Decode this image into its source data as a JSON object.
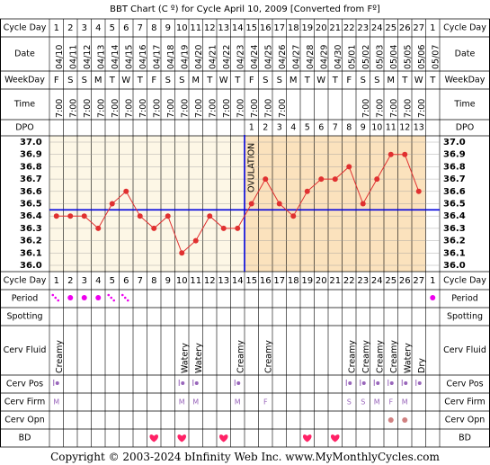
{
  "title": "BBT Chart (C º) for Cycle April 10, 2009  [Converted from Fº]",
  "labels": {
    "cycle_day": "Cycle Day",
    "date": "Date",
    "weekday": "WeekDay",
    "time": "Time",
    "dpo": "DPO",
    "period": "Period",
    "spotting": "Spotting",
    "cerv_fluid": "Cerv Fluid",
    "cerv_pos": "Cerv Pos",
    "cerv_firm": "Cerv Firm",
    "cerv_opn": "Cerv Opn",
    "bd": "BD"
  },
  "cycle_days": [
    "1",
    "2",
    "3",
    "4",
    "5",
    "6",
    "7",
    "8",
    "9",
    "10",
    "11",
    "12",
    "13",
    "14",
    "15",
    "16",
    "17",
    "18",
    "19",
    "20",
    "21",
    "22",
    "23",
    "24",
    "25",
    "26",
    "27",
    "1"
  ],
  "dates": [
    "04/10",
    "04/11",
    "04/12",
    "04/13",
    "04/14",
    "04/15",
    "04/16",
    "04/17",
    "04/18",
    "04/19",
    "04/20",
    "04/21",
    "04/22",
    "04/23",
    "04/24",
    "04/25",
    "04/26",
    "04/27",
    "04/28",
    "04/29",
    "04/30",
    "05/01",
    "05/02",
    "05/03",
    "05/04",
    "05/05",
    "05/06",
    "05/07"
  ],
  "weekdays": [
    "F",
    "S",
    "S",
    "M",
    "T",
    "W",
    "T",
    "F",
    "S",
    "S",
    "M",
    "T",
    "W",
    "T",
    "F",
    "S",
    "S",
    "M",
    "T",
    "W",
    "T",
    "F",
    "S",
    "S",
    "M",
    "T",
    "W",
    "T"
  ],
  "times": [
    "7:00",
    "7:00",
    "7:00",
    "7:00",
    "7:00",
    "7:00",
    "7:00",
    "7:00",
    "7:00",
    "7:00",
    "7:00",
    "7:00",
    "7:00",
    "7:00",
    "7:00",
    "7:00",
    "7:00",
    "",
    "",
    "",
    "",
    "",
    "7:00",
    "7:00",
    "7:00",
    "7:00",
    "7:00",
    ""
  ],
  "dpo": [
    "",
    "",
    "",
    "",
    "",
    "",
    "",
    "",
    "",
    "",
    "",
    "",
    "",
    "",
    "1",
    "2",
    "3",
    "4",
    "5",
    "6",
    "7",
    "8",
    "9",
    "10",
    "11",
    "12",
    "13",
    ""
  ],
  "ovulation_label": "OVULATION",
  "cerv_fluid": [
    "Creamy",
    "",
    "",
    "",
    "",
    "",
    "",
    "",
    "",
    "Watery",
    "Watery",
    "",
    "",
    "Creamy",
    "",
    "Creamy",
    "",
    "",
    "",
    "",
    "",
    "Creamy",
    "Creamy",
    "Creamy",
    "Creamy",
    "Watery",
    "Dry",
    ""
  ],
  "cerv_firm": [
    "M",
    "",
    "",
    "",
    "",
    "",
    "",
    "",
    "",
    "M",
    "M",
    "",
    "",
    "M",
    "",
    "F",
    "",
    "",
    "",
    "",
    "",
    "S",
    "S",
    "M",
    "F",
    "M",
    "",
    ""
  ],
  "chart_data": {
    "type": "line",
    "title": "BBT Chart (C º) for Cycle April 10, 2009  [Converted from Fº]",
    "x": [
      "1",
      "2",
      "3",
      "4",
      "5",
      "6",
      "7",
      "8",
      "9",
      "10",
      "11",
      "12",
      "13",
      "14",
      "15",
      "16",
      "17",
      "18",
      "19",
      "20",
      "21",
      "22",
      "23",
      "24",
      "25",
      "26",
      "27"
    ],
    "series": [
      {
        "values": [
          36.4,
          36.4,
          36.4,
          36.3,
          36.5,
          36.6,
          36.4,
          36.3,
          36.4,
          36.1,
          36.2,
          36.4,
          36.3,
          36.3,
          36.5,
          36.7,
          36.5,
          36.4,
          36.6,
          36.7,
          36.7,
          36.8,
          36.5,
          36.7,
          36.9,
          36.9,
          36.6
        ]
      }
    ],
    "yticks": [
      "37.0",
      "36.9",
      "36.8",
      "36.7",
      "36.6",
      "36.5",
      "36.4",
      "36.3",
      "36.2",
      "36.1",
      "36.0"
    ],
    "ylim": [
      36.0,
      37.0
    ],
    "coverline": 36.45,
    "ovulation_after_day": 14,
    "line_color": "#e03030",
    "coverline_color": "#0000dd"
  },
  "period": [
    "dots",
    "dot",
    "dot",
    "dot",
    "dots",
    "dots",
    "",
    "",
    "",
    "",
    "",
    "",
    "",
    "",
    "",
    "",
    "",
    "",
    "",
    "",
    "",
    "",
    "",
    "",
    "",
    "",
    "",
    "dot"
  ],
  "cerv_pos": [
    "|",
    "",
    "",
    "",
    "",
    "",
    "",
    "",
    "",
    "|",
    "|",
    "",
    "",
    "|",
    "",
    "",
    "",
    "",
    "",
    "",
    "",
    "|",
    "|",
    "|",
    "|",
    "|",
    "|",
    ""
  ],
  "cerv_opn": [
    "",
    "",
    "",
    "",
    "",
    "",
    "",
    "",
    "",
    "",
    "",
    "",
    "",
    "",
    "",
    "",
    "",
    "",
    "",
    "",
    "",
    "",
    "",
    "",
    "o",
    "o",
    "",
    ""
  ],
  "bd": [
    "",
    "",
    "",
    "",
    "",
    "",
    "",
    "1",
    "",
    "1",
    "",
    "",
    "1",
    "",
    "",
    "",
    "",
    "",
    "1",
    "",
    "1",
    "",
    "",
    "",
    "",
    "",
    "",
    ""
  ],
  "colors": {
    "header_bg": "#ffffff",
    "pre_ovulation_bg": "#fdf7e6",
    "post_ovulation_bg": "#fbe2bd",
    "period": "#ee00ee",
    "cerv_purple": "#9966bb",
    "cerv_opn": "#d08080",
    "heart": "#ff2266"
  },
  "copyright": "Copyright © 2003-2024 bInfinity Web Inc.    www.MyMonthlyCycles.com"
}
